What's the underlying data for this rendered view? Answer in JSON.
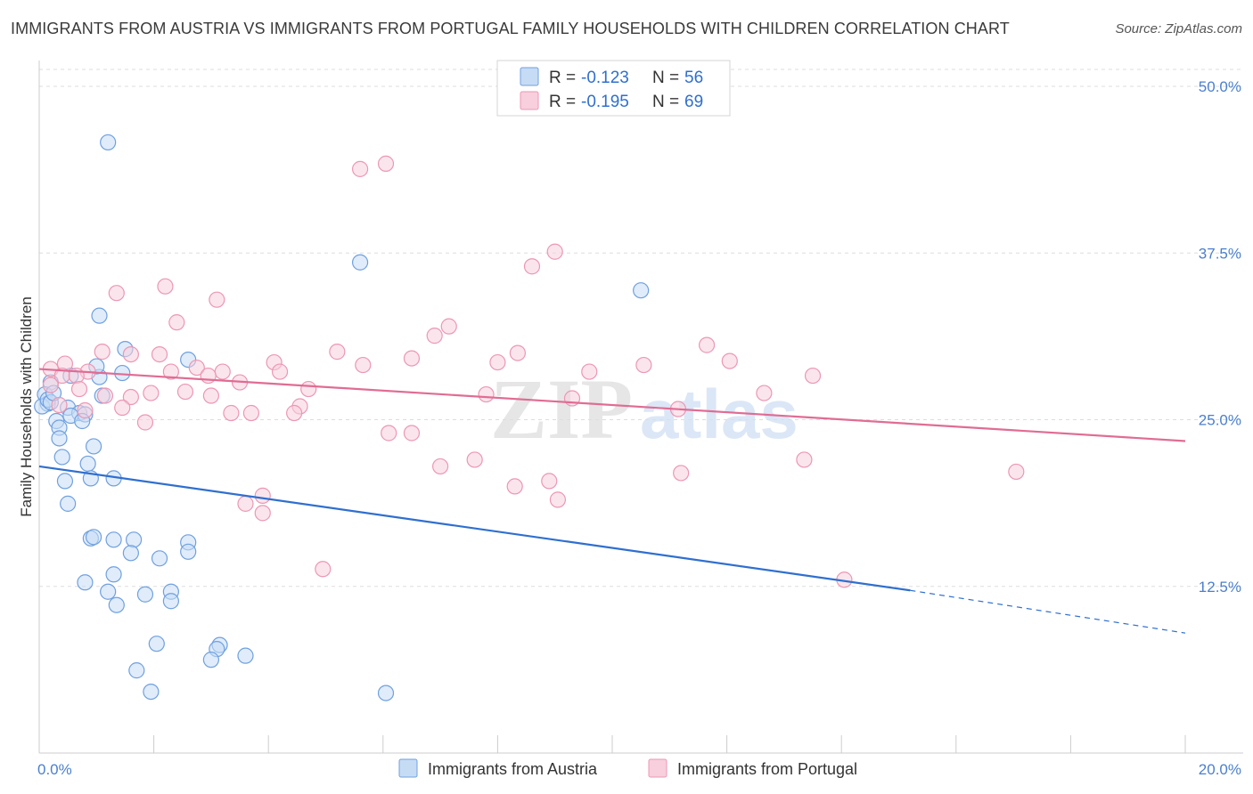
{
  "title": "IMMIGRANTS FROM AUSTRIA VS IMMIGRANTS FROM PORTUGAL FAMILY HOUSEHOLDS WITH CHILDREN CORRELATION CHART",
  "source": "Source: ZipAtlas.com",
  "watermark": {
    "zip": "ZIP",
    "atlas": "atlas"
  },
  "colors": {
    "austria_fill": "#c6dcf5",
    "austria_stroke": "#6fa0e0",
    "austria_line": "#2f6fcf",
    "portugal_fill": "#f8cfdc",
    "portugal_stroke": "#ec97b3",
    "portugal_line": "#e06c94",
    "grid": "#dddddd",
    "tick_label": "#4a7fd0"
  },
  "legend": {
    "rows": [
      {
        "r_label": "R =",
        "r_value": "-0.123",
        "n_label": "N =",
        "n_value": "56"
      },
      {
        "r_label": "R =",
        "r_value": "-0.195",
        "n_label": "N =",
        "n_value": "69"
      }
    ]
  },
  "chart_data": {
    "type": "scatter",
    "xlabel": "",
    "ylabel": "Family Households with Children",
    "xlim": [
      0,
      20
    ],
    "ylim": [
      0,
      52
    ],
    "x_tick_labels": [
      {
        "value": 0,
        "label": "0.0%"
      },
      {
        "value": 20,
        "label": "20.0%"
      }
    ],
    "y_tick_labels": [
      {
        "value": 12.5,
        "label": "12.5%"
      },
      {
        "value": 25.0,
        "label": "25.0%"
      },
      {
        "value": 37.5,
        "label": "37.5%"
      },
      {
        "value": 50.0,
        "label": "50.0%"
      }
    ],
    "series": [
      {
        "name": "Immigrants from Austria",
        "trend": {
          "x0": 0,
          "y0": 21.5,
          "x1": 15.2,
          "y1": 12.2,
          "dash_to_x": 20,
          "dash_to_y": 9.0
        },
        "points": [
          [
            1.2,
            45.8
          ],
          [
            5.6,
            36.8
          ],
          [
            10.5,
            34.7
          ],
          [
            1.05,
            32.8
          ],
          [
            1.5,
            30.3
          ],
          [
            2.6,
            29.5
          ],
          [
            1.45,
            28.5
          ],
          [
            0.55,
            28.3
          ],
          [
            1.05,
            28.2
          ],
          [
            1.0,
            29.0
          ],
          [
            0.2,
            27.8
          ],
          [
            0.1,
            26.9
          ],
          [
            0.15,
            26.2
          ],
          [
            0.05,
            26.0
          ],
          [
            1.1,
            26.8
          ],
          [
            0.5,
            25.9
          ],
          [
            0.7,
            25.5
          ],
          [
            0.8,
            25.4
          ],
          [
            0.55,
            25.3
          ],
          [
            0.3,
            24.9
          ],
          [
            0.75,
            24.9
          ],
          [
            0.35,
            24.4
          ],
          [
            0.35,
            23.6
          ],
          [
            0.95,
            23.0
          ],
          [
            0.4,
            22.2
          ],
          [
            0.85,
            21.7
          ],
          [
            0.45,
            20.4
          ],
          [
            1.3,
            20.6
          ],
          [
            0.9,
            20.6
          ],
          [
            0.5,
            18.7
          ],
          [
            0.9,
            16.1
          ],
          [
            0.95,
            16.2
          ],
          [
            1.3,
            16.0
          ],
          [
            1.65,
            16.0
          ],
          [
            2.6,
            15.8
          ],
          [
            1.6,
            15.0
          ],
          [
            2.6,
            15.1
          ],
          [
            2.1,
            14.6
          ],
          [
            1.3,
            13.4
          ],
          [
            0.8,
            12.8
          ],
          [
            1.2,
            12.1
          ],
          [
            2.3,
            12.1
          ],
          [
            1.85,
            11.9
          ],
          [
            2.3,
            11.4
          ],
          [
            1.35,
            11.1
          ],
          [
            2.05,
            8.2
          ],
          [
            3.15,
            8.1
          ],
          [
            3.1,
            7.8
          ],
          [
            3.6,
            7.3
          ],
          [
            3.0,
            7.0
          ],
          [
            1.7,
            6.2
          ],
          [
            1.95,
            4.6
          ],
          [
            6.05,
            4.5
          ],
          [
            0.15,
            26.5
          ],
          [
            0.2,
            26.3
          ],
          [
            0.25,
            27.0
          ]
        ]
      },
      {
        "name": "Immigrants from Portugal",
        "trend": {
          "x0": 0,
          "y0": 28.8,
          "x1": 20,
          "y1": 23.4
        },
        "points": [
          [
            6.05,
            44.2
          ],
          [
            5.6,
            43.8
          ],
          [
            9.0,
            37.6
          ],
          [
            8.6,
            36.5
          ],
          [
            2.2,
            35.0
          ],
          [
            1.35,
            34.5
          ],
          [
            3.1,
            34.0
          ],
          [
            2.4,
            32.3
          ],
          [
            7.15,
            32.0
          ],
          [
            6.9,
            31.3
          ],
          [
            11.65,
            30.6
          ],
          [
            5.2,
            30.1
          ],
          [
            8.35,
            30.0
          ],
          [
            1.1,
            30.1
          ],
          [
            1.6,
            29.9
          ],
          [
            2.1,
            29.9
          ],
          [
            6.5,
            29.6
          ],
          [
            12.05,
            29.4
          ],
          [
            4.1,
            29.3
          ],
          [
            10.55,
            29.1
          ],
          [
            8.0,
            29.3
          ],
          [
            5.65,
            29.1
          ],
          [
            0.45,
            29.2
          ],
          [
            0.2,
            28.8
          ],
          [
            2.75,
            28.9
          ],
          [
            3.2,
            28.6
          ],
          [
            2.3,
            28.6
          ],
          [
            0.85,
            28.6
          ],
          [
            0.4,
            28.3
          ],
          [
            0.65,
            28.3
          ],
          [
            2.95,
            28.3
          ],
          [
            4.2,
            28.6
          ],
          [
            13.5,
            28.3
          ],
          [
            9.6,
            28.6
          ],
          [
            3.5,
            27.8
          ],
          [
            0.2,
            27.6
          ],
          [
            0.7,
            27.3
          ],
          [
            4.7,
            27.3
          ],
          [
            2.55,
            27.1
          ],
          [
            1.95,
            27.0
          ],
          [
            12.65,
            27.0
          ],
          [
            1.6,
            26.7
          ],
          [
            7.8,
            26.9
          ],
          [
            3.0,
            26.8
          ],
          [
            1.15,
            26.8
          ],
          [
            9.3,
            26.6
          ],
          [
            0.35,
            26.1
          ],
          [
            4.55,
            26.0
          ],
          [
            1.45,
            25.9
          ],
          [
            0.8,
            25.7
          ],
          [
            11.15,
            25.8
          ],
          [
            3.35,
            25.5
          ],
          [
            3.7,
            25.5
          ],
          [
            4.45,
            25.5
          ],
          [
            1.85,
            24.8
          ],
          [
            6.1,
            24.0
          ],
          [
            6.5,
            24.0
          ],
          [
            7.6,
            22.0
          ],
          [
            7.0,
            21.5
          ],
          [
            13.35,
            22.0
          ],
          [
            11.2,
            21.0
          ],
          [
            17.05,
            21.1
          ],
          [
            8.9,
            20.4
          ],
          [
            8.3,
            20.0
          ],
          [
            9.05,
            19.0
          ],
          [
            3.9,
            19.3
          ],
          [
            3.6,
            18.7
          ],
          [
            3.9,
            18.0
          ],
          [
            4.95,
            13.8
          ],
          [
            14.05,
            13.0
          ]
        ]
      }
    ]
  }
}
